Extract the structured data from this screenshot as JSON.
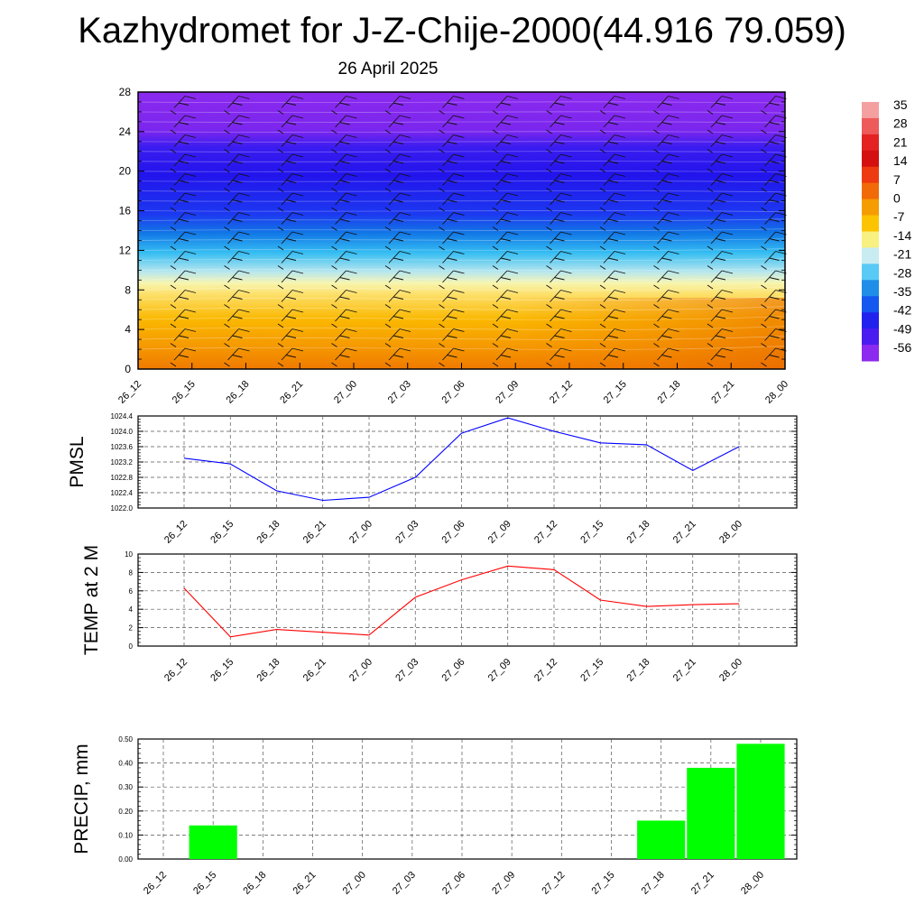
{
  "header": {
    "title": "Kazhydromet for J-Z-Chije-2000(44.916 79.059)",
    "subtitle": "26 April 2025"
  },
  "time_labels": [
    "26_12",
    "26_15",
    "26_18",
    "26_21",
    "27_00",
    "27_03",
    "27_06",
    "27_09",
    "27_12",
    "27_15",
    "27_18",
    "27_21",
    "28_00"
  ],
  "colorbar": {
    "labels": [
      "35",
      "28",
      "21",
      "14",
      "7",
      "0",
      "-7",
      "-14",
      "-21",
      "-28",
      "-35",
      "-42",
      "-49",
      "-56"
    ]
  },
  "chart_data": [
    {
      "type": "heatmap",
      "y_ticks": [
        "0",
        "4",
        "8",
        "12",
        "16",
        "20",
        "24",
        "28"
      ],
      "ylim": [
        0,
        28
      ],
      "x": [
        "26_12",
        "26_15",
        "26_18",
        "26_21",
        "27_00",
        "27_03",
        "27_06",
        "27_09",
        "27_12",
        "27_15",
        "27_18",
        "27_21",
        "28_00"
      ],
      "colorbar_range": [
        -56,
        35
      ]
    },
    {
      "type": "line",
      "ylabel": "PMSL",
      "x": [
        "26_12",
        "26_15",
        "26_18",
        "26_21",
        "27_00",
        "27_03",
        "27_06",
        "27_09",
        "27_12",
        "27_15",
        "27_18",
        "27_21",
        "28_00"
      ],
      "values": [
        1023.3,
        1023.15,
        1022.45,
        1022.2,
        1022.28,
        1022.8,
        1023.95,
        1024.35,
        1024.0,
        1023.7,
        1023.65,
        1022.98,
        1023.6
      ],
      "ylim": [
        1022.0,
        1024.4
      ],
      "y_ticks": [
        "1022.0",
        "1022.4",
        "1022.8",
        "1023.2",
        "1023.6",
        "1024.0",
        "1024.4"
      ],
      "color": "#0000ff"
    },
    {
      "type": "line",
      "ylabel": "TEMP at 2 M",
      "x": [
        "26_12",
        "26_15",
        "26_18",
        "26_21",
        "27_00",
        "27_03",
        "27_06",
        "27_09",
        "27_12",
        "27_15",
        "27_18",
        "27_21",
        "28_00"
      ],
      "values": [
        6.3,
        1.0,
        1.8,
        1.5,
        1.2,
        5.3,
        7.2,
        8.7,
        8.3,
        5.0,
        4.3,
        4.5,
        4.6
      ],
      "ylim": [
        0,
        10
      ],
      "y_ticks": [
        "0",
        "2",
        "4",
        "6",
        "8",
        "10"
      ],
      "color": "#ff0000"
    },
    {
      "type": "bar",
      "ylabel": "PRECIP, mm",
      "x": [
        "26_12",
        "26_15",
        "26_18",
        "26_21",
        "27_00",
        "27_03",
        "27_06",
        "27_09",
        "27_12",
        "27_15",
        "27_18",
        "27_21",
        "28_00"
      ],
      "values": [
        0,
        0.14,
        0,
        0,
        0,
        0,
        0,
        0,
        0,
        0,
        0.16,
        0.38,
        0.48
      ],
      "ylim": [
        0,
        0.5
      ],
      "y_ticks": [
        "0.00",
        "0.10",
        "0.20",
        "0.30",
        "0.40",
        "0.50"
      ],
      "color": "#00ff00"
    }
  ]
}
